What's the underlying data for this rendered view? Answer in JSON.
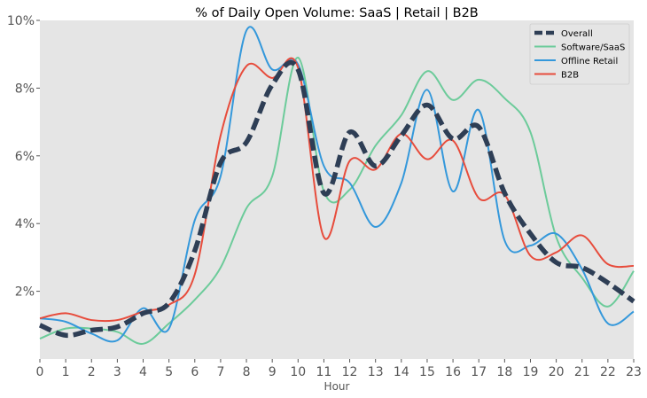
{
  "chart_data": {
    "type": "line",
    "title": "% of Daily Open Volume: SaaS | Retail | B2B",
    "xlabel": "Hour",
    "ylabel": "",
    "x": [
      0,
      1,
      2,
      3,
      4,
      5,
      6,
      7,
      8,
      9,
      10,
      11,
      12,
      13,
      14,
      15,
      16,
      17,
      18,
      19,
      20,
      21,
      22,
      23
    ],
    "xlim": [
      0,
      23
    ],
    "ylim": [
      0,
      10
    ],
    "yticks": [
      2,
      4,
      6,
      8,
      10
    ],
    "ytick_labels": [
      "2%",
      "4%",
      "6%",
      "8%",
      "10%"
    ],
    "xtick_labels": [
      "0",
      "1",
      "2",
      "3",
      "4",
      "5",
      "6",
      "7",
      "8",
      "9",
      "10",
      "11",
      "12",
      "13",
      "14",
      "15",
      "16",
      "17",
      "18",
      "19",
      "20",
      "21",
      "22",
      "23"
    ],
    "grid": false,
    "legend_position": "top-right",
    "series": [
      {
        "name": "Overall",
        "color": "#2e3e55",
        "style": "dashed",
        "values": [
          1.0,
          0.7,
          0.85,
          0.95,
          1.35,
          1.65,
          3.2,
          5.8,
          6.4,
          8.1,
          8.55,
          4.9,
          6.7,
          5.7,
          6.6,
          7.5,
          6.5,
          6.85,
          4.9,
          3.7,
          2.85,
          2.7,
          2.25,
          1.7
        ]
      },
      {
        "name": "Software/SaaS",
        "color": "#6ccb9a",
        "style": "solid",
        "values": [
          0.6,
          0.9,
          0.9,
          0.8,
          0.45,
          1.05,
          1.75,
          2.7,
          4.45,
          5.4,
          8.9,
          4.95,
          5.0,
          6.3,
          7.2,
          8.5,
          7.65,
          8.25,
          7.7,
          6.7,
          3.6,
          2.4,
          1.55,
          2.6
        ]
      },
      {
        "name": "Offline Retail",
        "color": "#3498db",
        "style": "solid",
        "values": [
          1.2,
          1.1,
          0.75,
          0.55,
          1.5,
          0.9,
          4.1,
          5.4,
          9.7,
          8.55,
          8.7,
          5.7,
          5.2,
          3.9,
          5.2,
          7.95,
          4.95,
          7.35,
          3.5,
          3.35,
          3.7,
          2.65,
          1.05,
          1.4
        ]
      },
      {
        "name": "B2B",
        "color": "#e74c3c",
        "style": "solid",
        "values": [
          1.2,
          1.35,
          1.15,
          1.15,
          1.4,
          1.6,
          2.5,
          6.6,
          8.65,
          8.3,
          8.6,
          3.6,
          5.85,
          5.6,
          6.65,
          5.9,
          6.45,
          4.75,
          4.85,
          3.05,
          3.15,
          3.65,
          2.8,
          2.75
        ]
      }
    ]
  }
}
